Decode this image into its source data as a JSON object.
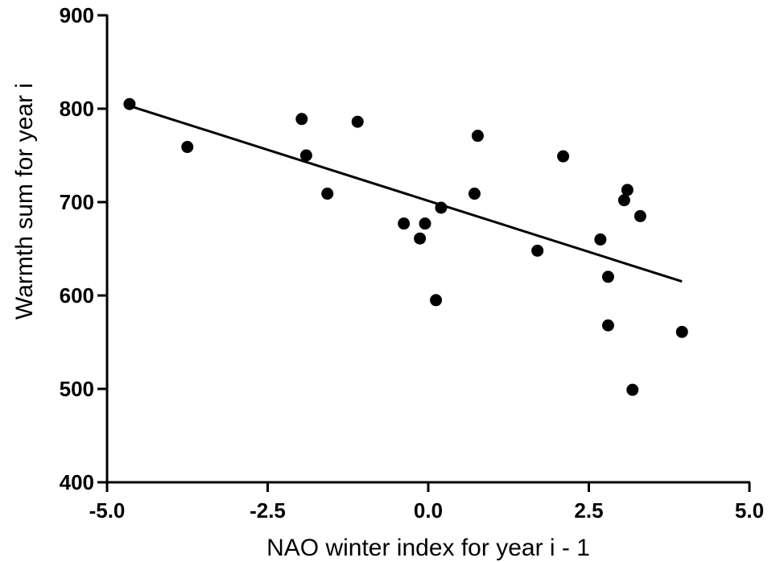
{
  "chart_data": {
    "type": "scatter",
    "title": "",
    "xlabel": "NAO winter index for year i - 1",
    "ylabel": "Warmth sum for year i",
    "xlim": [
      -5.0,
      5.0
    ],
    "ylim": [
      400,
      900
    ],
    "x_ticks": [
      -5.0,
      -2.5,
      0.0,
      2.5,
      5.0
    ],
    "x_tick_labels": [
      "-5.0",
      "-2.5",
      "0.0",
      "2.5",
      "5.0"
    ],
    "y_ticks": [
      400,
      500,
      600,
      700,
      800,
      900
    ],
    "y_tick_labels": [
      "400",
      "500",
      "600",
      "700",
      "800",
      "900"
    ],
    "grid": false,
    "points": [
      {
        "x": -4.65,
        "y": 805
      },
      {
        "x": -3.75,
        "y": 759
      },
      {
        "x": -1.97,
        "y": 789
      },
      {
        "x": -1.9,
        "y": 750
      },
      {
        "x": -1.57,
        "y": 709
      },
      {
        "x": -1.1,
        "y": 786
      },
      {
        "x": -0.38,
        "y": 677
      },
      {
        "x": -0.13,
        "y": 661
      },
      {
        "x": -0.05,
        "y": 677
      },
      {
        "x": 0.12,
        "y": 595
      },
      {
        "x": 0.2,
        "y": 694
      },
      {
        "x": 0.72,
        "y": 709
      },
      {
        "x": 0.77,
        "y": 771
      },
      {
        "x": 1.7,
        "y": 648
      },
      {
        "x": 2.1,
        "y": 749
      },
      {
        "x": 2.68,
        "y": 660
      },
      {
        "x": 2.8,
        "y": 620
      },
      {
        "x": 2.8,
        "y": 568
      },
      {
        "x": 3.05,
        "y": 702
      },
      {
        "x": 3.1,
        "y": 713
      },
      {
        "x": 3.18,
        "y": 499
      },
      {
        "x": 3.3,
        "y": 685
      },
      {
        "x": 3.95,
        "y": 561
      }
    ],
    "trendline": {
      "x": [
        -4.65,
        3.95
      ],
      "y": [
        803,
        615
      ]
    },
    "colors": {
      "points": "#000000",
      "line": "#000000",
      "axis": "#000000"
    }
  }
}
